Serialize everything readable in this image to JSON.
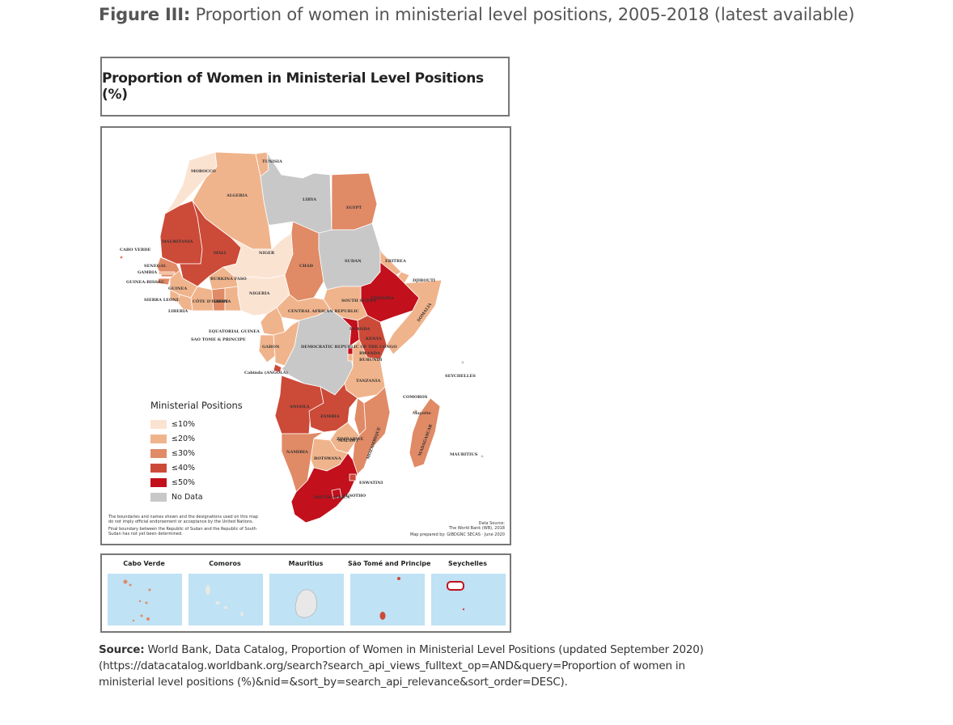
{
  "figure": {
    "label": "Figure III:",
    "caption": "Proportion of women in ministerial level positions, 2005-2018 (latest available)"
  },
  "map": {
    "title": "Proportion of Women in Ministerial Level Positions (%)",
    "legend": {
      "title": "Ministerial Positions",
      "items": [
        {
          "label": "≤10%",
          "color": "#fbe3d2"
        },
        {
          "label": "≤20%",
          "color": "#f0b48c"
        },
        {
          "label": "≤30%",
          "color": "#e08a66"
        },
        {
          "label": "≤40%",
          "color": "#cc4a38"
        },
        {
          "label": "≤50%",
          "color": "#c2101c"
        },
        {
          "label": "No Data",
          "color": "#c8c8c8"
        }
      ]
    },
    "credits": {
      "line1": "Data Source:",
      "line2": "The World Bank (WB), 2018",
      "line3": "Map prepared by: GIBDGNC SECAS · June 2020"
    },
    "disclaimer": {
      "line1": "The boundaries and names shown and the designations used on this map",
      "line2": "do not imply official endorsement or acceptance by the United Nations.",
      "line3": "Final boundary between the Republic of Sudan and the Republic of South",
      "line4": "Sudan has not yet been determined."
    },
    "country_labels": {
      "morocco": "MOROCCO",
      "tunisia": "TUNISIA",
      "algeria": "ALGERIA",
      "libya": "LIBYA",
      "egypt": "EGYPT",
      "mauritania": "MAURITANIA",
      "mali": "MALI",
      "niger": "NIGER",
      "chad": "CHAD",
      "sudan": "SUDAN",
      "eritrea": "ERITREA",
      "djibouti": "DJIBOUTI",
      "ethiopia": "ETHIOPIA",
      "somalia": "SOMALIA",
      "south_sudan": "SOUTH SUDAN",
      "car": "CENTRAL AFRICAN REPUBLIC",
      "nigeria": "NIGERIA",
      "burkina": "BURKINA FASO",
      "senegal": "SENEGAL",
      "gambia": "GAMBIA",
      "guinea_bissau": "GUINEA-BISSAU",
      "guinea": "GUINEA",
      "sierra_leone": "SIERRA LEONE",
      "liberia": "LIBERIA",
      "cote": "CÔTE D'IVOIRE",
      "ghana": "GHANA",
      "eq_guinea": "EQUATORIAL GUINEA",
      "stp": "SAO TOME & PRINCIPE",
      "gabon": "GABON",
      "drc": "DEMOCRATIC REPUBLIC OF THE CONGO",
      "kenya": "KENYA",
      "uganda": "UGANDA",
      "rwanda": "RWANDA",
      "burundi": "BURUNDI",
      "tanzania": "TANZANIA",
      "cabinda": "Cabinda (ANGOLA)",
      "angola": "ANGOLA",
      "zambia": "ZAMBIA",
      "malawi": "MALAWI",
      "mozambique": "MOZAMBIQUE",
      "zimbabwe": "ZIMBABWE",
      "namibia": "NAMIBIA",
      "botswana": "BOTSWANA",
      "south_africa": "SOUTH AFRICA",
      "lesotho": "LESOTHO",
      "eswatini": "ESWATINI",
      "madagascar": "MADAGASCAR",
      "comoros": "COMOROS",
      "mayotte": "Mayotte",
      "seychelles": "SEYCHELLES",
      "mauritius": "MAURITIUS",
      "cabo_verde": "CABO VERDE"
    }
  },
  "insets": [
    {
      "name": "Cabo Verde"
    },
    {
      "name": "Comoros"
    },
    {
      "name": "Mauritius"
    },
    {
      "name": "São Tomé and Principe"
    },
    {
      "name": "Seychelles"
    }
  ],
  "source": {
    "label": "Source:",
    "text": "World Bank, Data Catalog, Proportion of Women in Ministerial Level Positions (updated September 2020) (https://datacatalog.worldbank.org/search?search_api_views_fulltext_op=AND&query=Proportion of women in ministerial level positions (%)&nid=&sort_by=search_api_relevance&sort_order=DESC)."
  }
}
